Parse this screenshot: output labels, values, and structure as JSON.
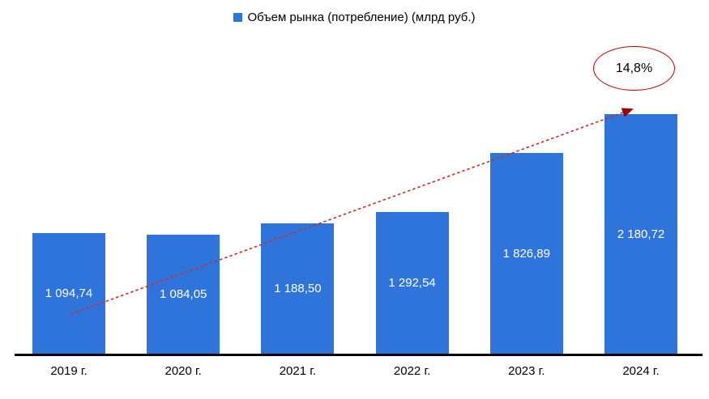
{
  "legend": {
    "label": "Объем рынка (потребление) (млрд руб.)",
    "marker_color": "#2E74DA"
  },
  "chart_data": {
    "type": "bar",
    "title": "",
    "series_name": "Объем рынка (потребление) (млрд руб.)",
    "unit": "млрд руб.",
    "categories": [
      "2019 г.",
      "2020 г.",
      "2021 г.",
      "2022 г.",
      "2023 г.",
      "2024 г."
    ],
    "values": [
      1094.74,
      1084.05,
      1188.5,
      1292.54,
      1826.89,
      2180.72
    ],
    "value_labels": [
      "1 094,74",
      "1 084,05",
      "1 188,50",
      "1 292,54",
      "1 826,89",
      "2 180,72"
    ],
    "ylim": [
      0,
      2400
    ],
    "grid": false,
    "legend_position": "top",
    "bar_color": "#2E74DA",
    "value_label_color": "#FFFFFF",
    "annotation": {
      "label": "14,8%",
      "type": "growth-rate-ellipse",
      "color": "#C00000"
    },
    "trendline": {
      "style": "dotted",
      "color": "#CC2B2B",
      "arrow_color": "#990000"
    }
  }
}
